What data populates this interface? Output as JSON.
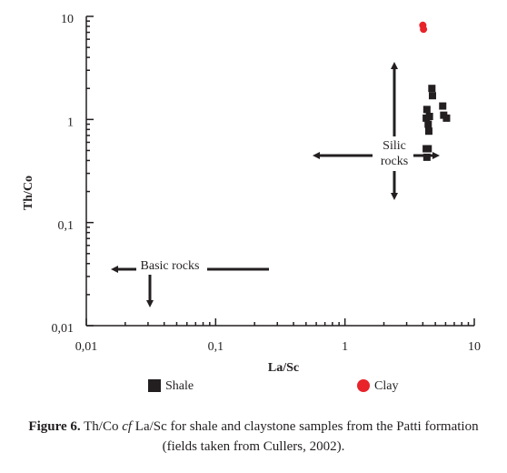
{
  "chart_data": {
    "type": "scatter",
    "x_label": "La/Sc",
    "y_label": "Th/Co",
    "xscale": "log",
    "yscale": "log",
    "xlim": [
      0.01,
      10
    ],
    "ylim": [
      0.01,
      10
    ],
    "xticks": [
      {
        "value": 0.01,
        "label": "0,01"
      },
      {
        "value": 0.1,
        "label": "0,1"
      },
      1,
      10
    ],
    "yticks": [
      {
        "value": 0.01,
        "label": "0,01"
      },
      {
        "value": 0.1,
        "label": "0,1"
      },
      1,
      10
    ],
    "annotations": [
      "Basic rocks",
      "Silic",
      "rocks"
    ],
    "series": [
      {
        "name": "Shale",
        "color": "#231f20",
        "marker": "square",
        "x": [
          4.7,
          4.75,
          4.3,
          5.7,
          4.25,
          4.5,
          5.8,
          6.1,
          4.4,
          4.45,
          4.25,
          4.4,
          4.3
        ],
        "values": [
          2.0,
          1.7,
          1.25,
          1.35,
          1.03,
          1.07,
          1.1,
          1.03,
          0.9,
          0.77,
          0.52,
          0.52,
          0.43
        ]
      },
      {
        "name": "Clay",
        "color": "#e8232a",
        "marker": "circle",
        "x": [
          4.0,
          4.05
        ],
        "values": [
          8.2,
          7.5
        ]
      }
    ]
  },
  "caption": {
    "label": "Figure 6.",
    "parts": [
      "Th/Co",
      "cf",
      "La/Sc for shale and claystone samples from the Patti formation",
      "(fields taken from Cullers, 2002)."
    ]
  }
}
